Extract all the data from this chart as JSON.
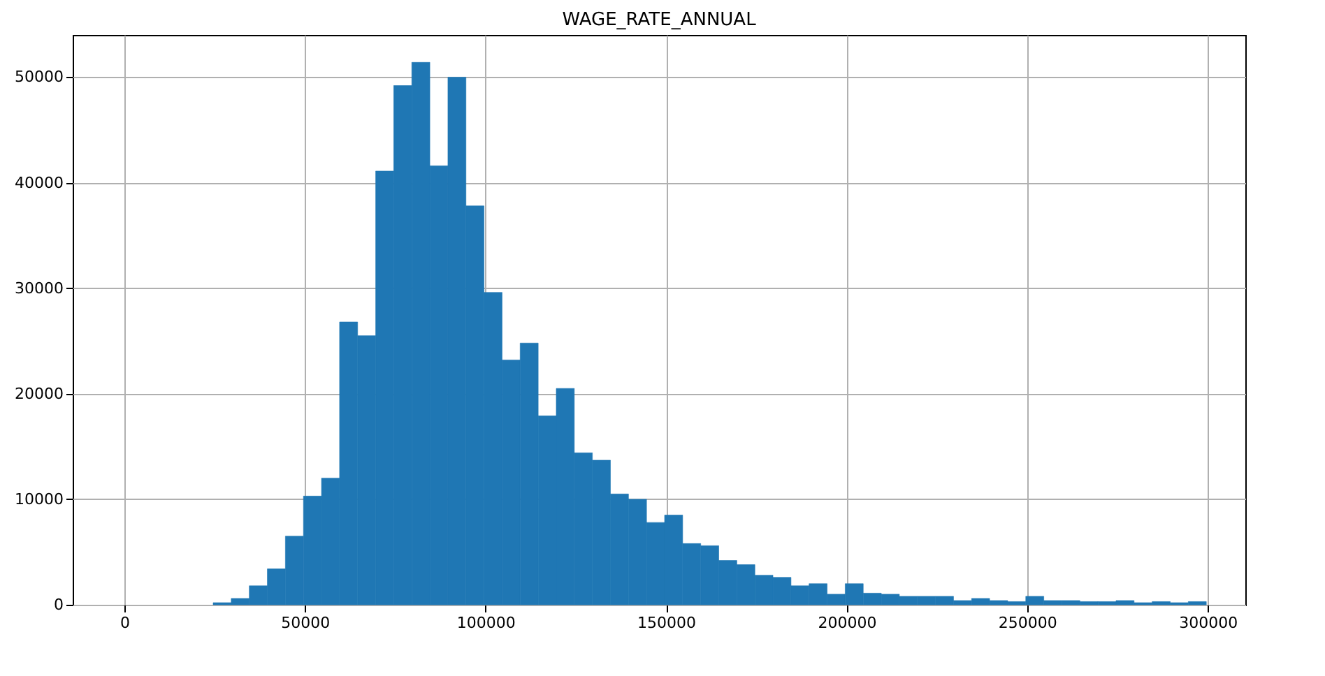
{
  "chart_data": {
    "type": "histogram",
    "title": "WAGE_RATE_ANNUAL",
    "bins": [
      24600,
      29600,
      34600,
      39600,
      44600,
      49600,
      54600,
      59600,
      64600,
      69600,
      74600,
      79600,
      84600,
      89600,
      94600,
      99600,
      104600,
      109600,
      114600,
      119600,
      124600,
      129600,
      134600,
      139600,
      144600,
      149600,
      154600,
      159600,
      164600,
      169600,
      174600,
      179600,
      184600,
      189600,
      194600,
      199600,
      204600,
      209600,
      214600,
      219600,
      224600,
      229600,
      234600,
      239600,
      244600,
      249600,
      254600,
      259600,
      264600,
      269600,
      274600,
      279600,
      284600,
      289600,
      294600,
      299600
    ],
    "values": [
      200,
      600,
      1800,
      3400,
      6500,
      10300,
      12000,
      26800,
      25500,
      41100,
      49200,
      51400,
      41600,
      50000,
      37800,
      29600,
      23200,
      24800,
      17900,
      20500,
      14400,
      13700,
      10500,
      10000,
      7800,
      8500,
      5800,
      5600,
      4200,
      3800,
      2800,
      2600,
      1800,
      2000,
      1000,
      2000,
      1100,
      1000,
      800,
      800,
      800,
      400,
      600,
      400,
      300,
      800,
      400,
      400,
      300,
      300,
      400,
      200,
      300,
      200,
      300
    ],
    "color": "#1f77b4",
    "xlim": [
      -14300,
      310400
    ],
    "xticks": [
      0,
      50000,
      100000,
      150000,
      200000,
      250000,
      300000
    ],
    "ylim": [
      0,
      54000
    ],
    "yticks": [
      0,
      10000,
      20000,
      30000,
      40000,
      50000
    ],
    "grid": true
  }
}
